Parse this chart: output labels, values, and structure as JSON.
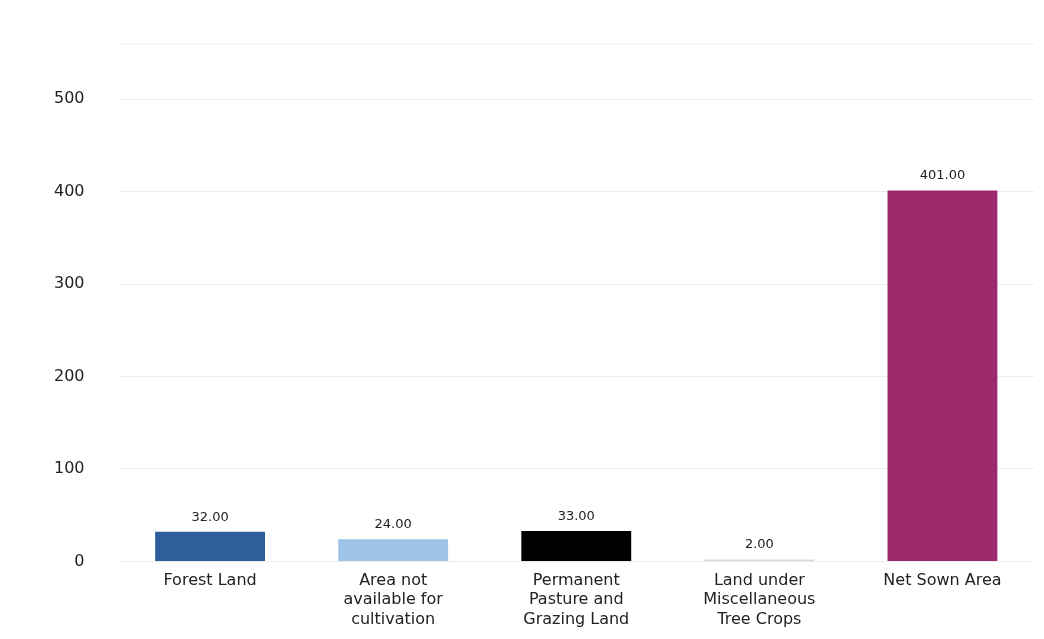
{
  "chart_data": {
    "type": "bar",
    "categories": [
      "Forest Land",
      "Area not available for cultivation",
      "Permanent Pasture and Grazing Land",
      "Land under Miscellaneous Tree Crops",
      "Net Sown Area"
    ],
    "values": [
      32,
      24,
      33,
      2,
      401
    ],
    "colors": [
      "#2e5f9a",
      "#9dc3e6",
      "#000000",
      "#d9d9d9",
      "#9e2a6e"
    ],
    "value_labels": [
      "32.00",
      "24.00",
      "33.00",
      "2.00",
      "401.00"
    ],
    "ylim": [
      0,
      560
    ],
    "yticks": [
      0,
      100,
      200,
      300,
      400,
      500
    ],
    "grid": "y",
    "legend": false
  }
}
